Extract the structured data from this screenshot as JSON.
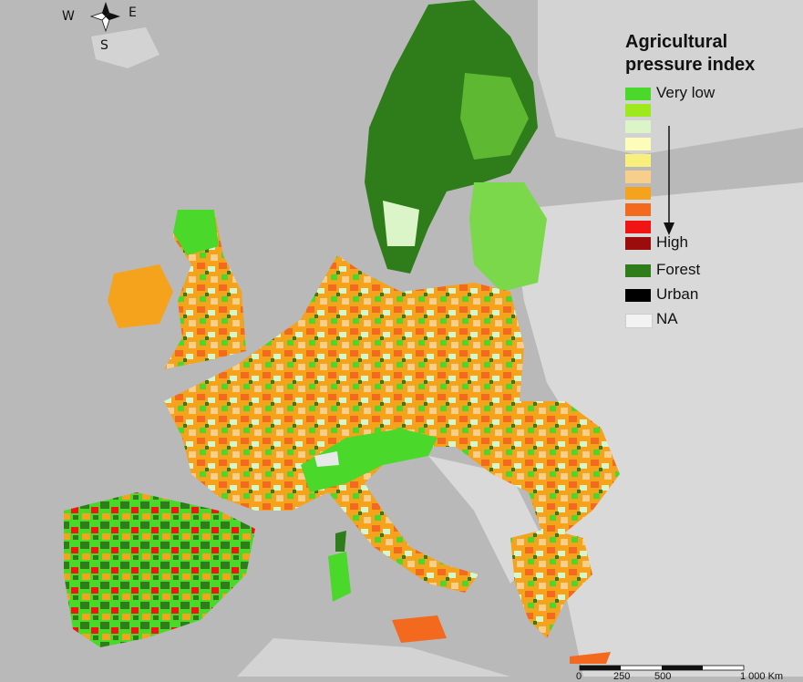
{
  "map": {
    "background_color": "#b9b9b9",
    "land_na_color": "#d9d9d9",
    "sea_color": "#b9b9b9"
  },
  "compass": {
    "north_icon": "compass-rose-icon",
    "w": "W",
    "e": "E",
    "s": "S"
  },
  "legend": {
    "title": "Agricultural pressure index",
    "scale_items": [
      {
        "label": "Very low",
        "color": "#4ad82a"
      },
      {
        "label": "",
        "color": "#9ee81e"
      },
      {
        "label": "",
        "color": "#dcf5c8"
      },
      {
        "label": "",
        "color": "#fdfcb8"
      },
      {
        "label": "",
        "color": "#f8f07a"
      },
      {
        "label": "",
        "color": "#f8cf8a"
      },
      {
        "label": "",
        "color": "#f5a21c"
      },
      {
        "label": "",
        "color": "#f3691e"
      },
      {
        "label": "",
        "color": "#f01414"
      },
      {
        "label": "High",
        "color": "#9b0d0d"
      }
    ],
    "arrow_icon": "down-arrow-icon",
    "other_items": [
      {
        "label": "Forest",
        "color": "#2e7d1a"
      },
      {
        "label": "Urban",
        "color": "#000000"
      },
      {
        "label": "NA",
        "color": "#f2f2f2"
      }
    ]
  },
  "scalebar": {
    "labels": [
      "0",
      "250",
      "500",
      "1 000 Km"
    ]
  }
}
